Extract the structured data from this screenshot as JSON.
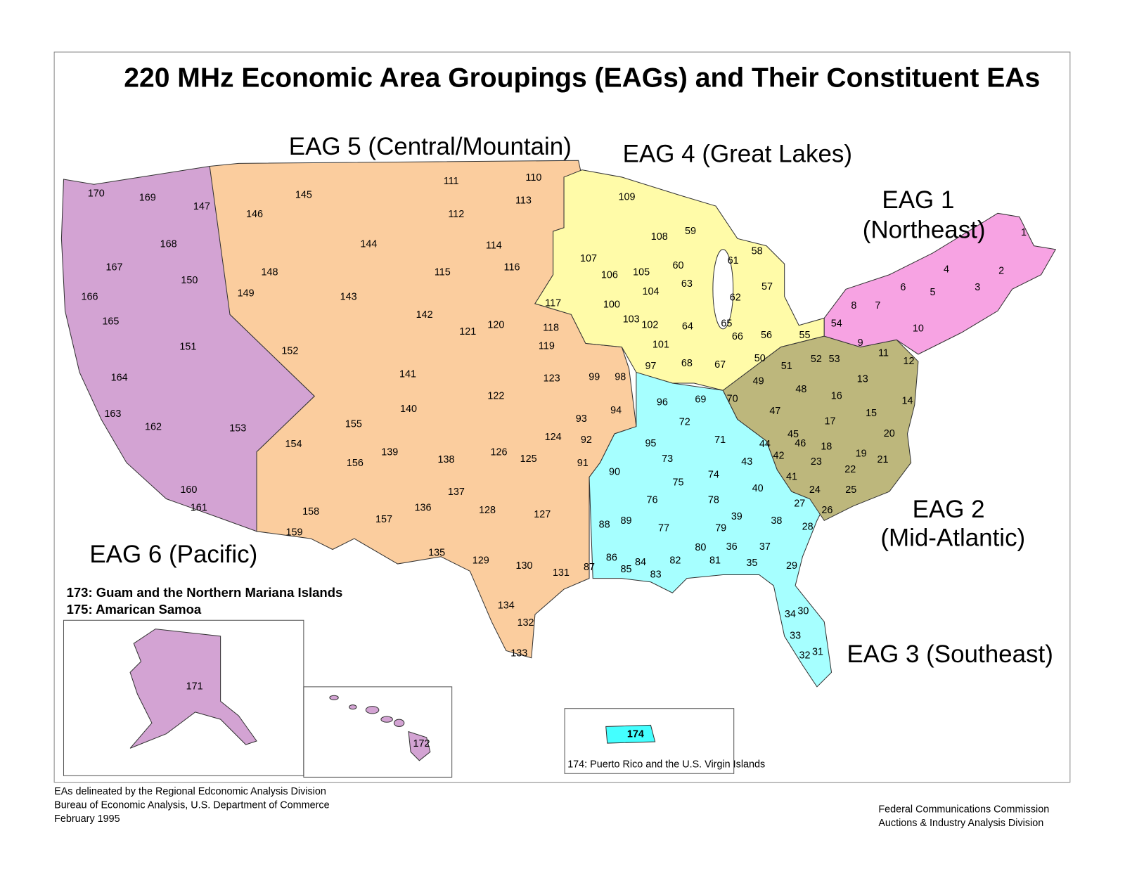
{
  "title": "220 MHz Economic Area Groupings (EAGs) and Their Constituent EAs",
  "regions": [
    {
      "lines": [
        "EAG 1",
        "(Northeast)"
      ]
    },
    {
      "lines": [
        "EAG 2",
        "(Mid-Atlantic)"
      ]
    },
    {
      "lines": [
        "EAG 3 (Southeast)"
      ]
    },
    {
      "lines": [
        "EAG 4 (Great Lakes)"
      ]
    },
    {
      "lines": [
        "EAG 5 (Central/Mountain)"
      ]
    },
    {
      "lines": [
        "EAG 6 (Pacific)"
      ]
    }
  ],
  "ea_labels": [
    "1",
    "2",
    "3",
    "4",
    "5",
    "6",
    "7",
    "8",
    "9",
    "10",
    "11",
    "12",
    "13",
    "14",
    "15",
    "16",
    "17",
    "18",
    "19",
    "20",
    "21",
    "22",
    "23",
    "24",
    "25",
    "26",
    "27",
    "28",
    "29",
    "30",
    "31",
    "32",
    "33",
    "34",
    "35",
    "36",
    "37",
    "38",
    "39",
    "40",
    "41",
    "42",
    "43",
    "44",
    "45",
    "46",
    "47",
    "48",
    "49",
    "50",
    "51",
    "52",
    "53",
    "54",
    "55",
    "56",
    "57",
    "58",
    "59",
    "60",
    "61",
    "62",
    "63",
    "64",
    "65",
    "66",
    "67",
    "68",
    "69",
    "70",
    "71",
    "72",
    "73",
    "74",
    "75",
    "76",
    "77",
    "78",
    "79",
    "80",
    "81",
    "82",
    "83",
    "84",
    "85",
    "86",
    "87",
    "88",
    "89",
    "90",
    "91",
    "92",
    "93",
    "94",
    "95",
    "96",
    "97",
    "98",
    "99",
    "100",
    "101",
    "102",
    "103",
    "104",
    "105",
    "106",
    "107",
    "108",
    "109",
    "110",
    "111",
    "112",
    "113",
    "114",
    "115",
    "116",
    "117",
    "118",
    "119",
    "120",
    "121",
    "122",
    "123",
    "124",
    "125",
    "126",
    "127",
    "128",
    "129",
    "130",
    "131",
    "132",
    "133",
    "134",
    "135",
    "136",
    "137",
    "138",
    "139",
    "140",
    "141",
    "142",
    "143",
    "144",
    "145",
    "146",
    "147",
    "148",
    "149",
    "150",
    "151",
    "152",
    "153",
    "154",
    "155",
    "156",
    "157",
    "158",
    "159",
    "160",
    "161",
    "162",
    "163",
    "164",
    "165",
    "166",
    "167",
    "168",
    "169",
    "170",
    "171",
    "172",
    "174"
  ],
  "notes": [
    "173: Guam and the Northern Mariana Islands",
    "175: Amarican Samoa"
  ],
  "puerto_rico_note": "174: Puerto Rico and the U.S. Virgin Islands",
  "footer_left": [
    "EAs delineated by the Regional Edconomic Analysis Division",
    "Bureau of Economic Analysis, U.S. Department of Commerce",
    "February 1995"
  ],
  "footer_right": [
    "Federal Communications Commission",
    "Auctions & Industry Analysis Division"
  ]
}
